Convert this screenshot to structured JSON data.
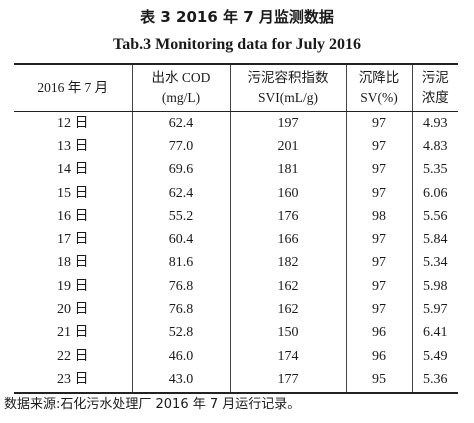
{
  "title_cn": "表 3   2016 年 7 月监测数据",
  "title_en": "Tab.3   Monitoring data for July 2016",
  "headers": {
    "date": "2016 年 7 月",
    "cod": [
      "出水 COD",
      "(mg/L)"
    ],
    "svi": [
      "污泥容积指数",
      "SVI(mL/g)"
    ],
    "sv": [
      "沉降比",
      "SV(%)"
    ],
    "conc": [
      "污泥",
      "浓度"
    ]
  },
  "rows": [
    {
      "date": "12 日",
      "cod": "62.4",
      "svi": "197",
      "sv": "97",
      "conc": "4.93"
    },
    {
      "date": "13 日",
      "cod": "77.0",
      "svi": "201",
      "sv": "97",
      "conc": "4.83"
    },
    {
      "date": "14 日",
      "cod": "69.6",
      "svi": "181",
      "sv": "97",
      "conc": "5.35"
    },
    {
      "date": "15 日",
      "cod": "62.4",
      "svi": "160",
      "sv": "97",
      "conc": "6.06"
    },
    {
      "date": "16 日",
      "cod": "55.2",
      "svi": "176",
      "sv": "98",
      "conc": "5.56"
    },
    {
      "date": "17 日",
      "cod": "60.4",
      "svi": "166",
      "sv": "97",
      "conc": "5.84"
    },
    {
      "date": "18 日",
      "cod": "81.6",
      "svi": "182",
      "sv": "97",
      "conc": "5.34"
    },
    {
      "date": "19 日",
      "cod": "76.8",
      "svi": "162",
      "sv": "97",
      "conc": "5.98"
    },
    {
      "date": "20 日",
      "cod": "76.8",
      "svi": "162",
      "sv": "97",
      "conc": "5.97"
    },
    {
      "date": "21 日",
      "cod": "52.8",
      "svi": "150",
      "sv": "96",
      "conc": "6.41"
    },
    {
      "date": "22 日",
      "cod": "46.0",
      "svi": "174",
      "sv": "96",
      "conc": "5.49"
    },
    {
      "date": "23 日",
      "cod": "43.0",
      "svi": "177",
      "sv": "95",
      "conc": "5.36"
    }
  ],
  "footnote": "数据来源:石化污水处理厂 2016 年 7 月运行记录。"
}
